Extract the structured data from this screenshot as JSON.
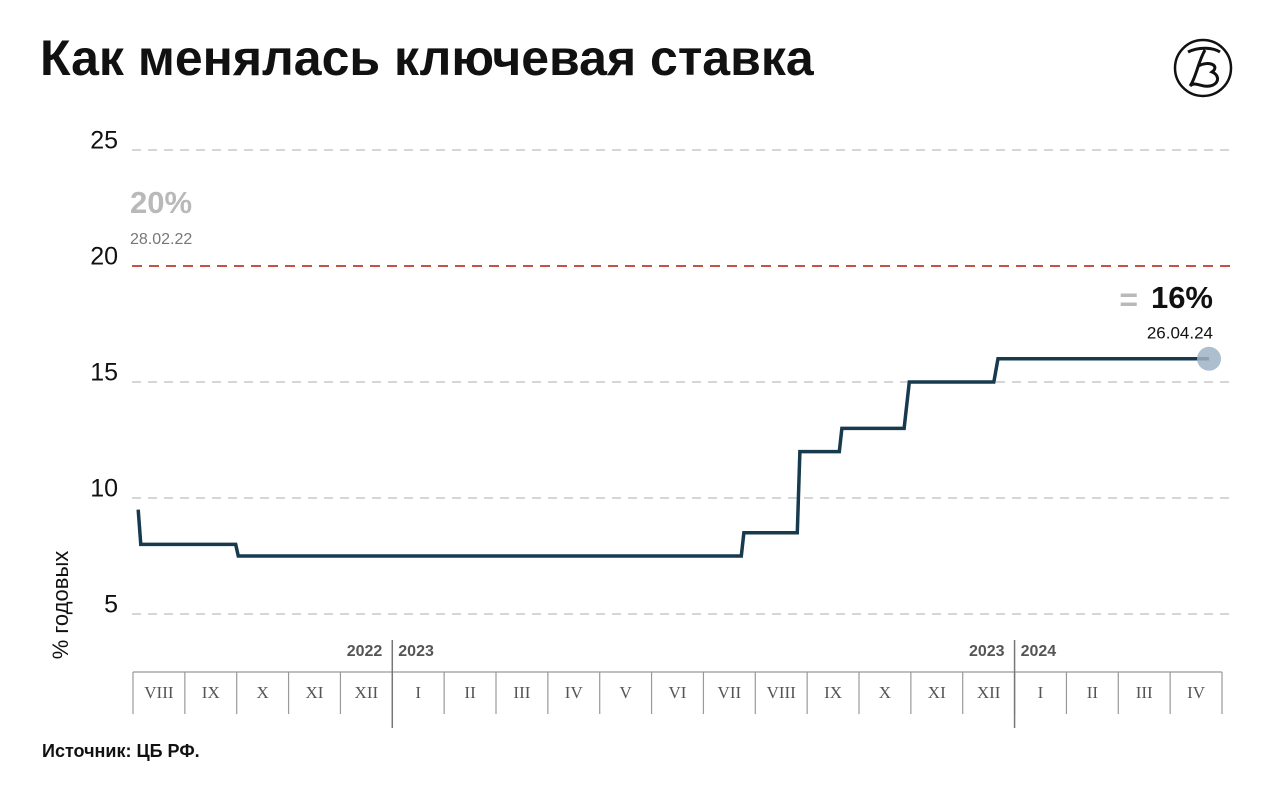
{
  "chart_data": {
    "type": "line",
    "title": "Как менялась ключевая ставка",
    "y_label": "% годовых",
    "source": "Источник: ЦБ РФ.",
    "categories": [
      "VIII",
      "IX",
      "X",
      "XI",
      "XII",
      "I",
      "II",
      "III",
      "IV",
      "V",
      "VI",
      "VII",
      "VIII",
      "IX",
      "X",
      "XI",
      "XII",
      "I",
      "II",
      "III",
      "IV"
    ],
    "year_breaks": [
      {
        "at": 5,
        "before": "2022",
        "after": "2023"
      },
      {
        "at": 17,
        "before": "2023",
        "after": "2024"
      }
    ],
    "xlim": [
      0,
      21
    ],
    "ylim": [
      2.5,
      25
    ],
    "yticks": [
      5,
      10,
      15,
      20,
      25
    ],
    "grid": true,
    "series": [
      {
        "color": "#173a4e",
        "x": [
          0.1,
          0.15,
          1.98,
          2.03,
          11.73,
          11.78,
          12.81,
          12.86,
          13.62,
          13.67,
          14.87,
          14.97,
          16.6,
          16.68,
          20.75
        ],
        "values": [
          9.5,
          8,
          8,
          7.5,
          7.5,
          8.5,
          8.5,
          12,
          12,
          13,
          13,
          15,
          15,
          16,
          16
        ]
      }
    ],
    "reference": {
      "value": 20,
      "label": "20%",
      "date": "28.02.22",
      "color": "#c0392b"
    },
    "end_label": {
      "value": 16,
      "label": "16%",
      "date": "26.04.24",
      "change": "="
    }
  }
}
